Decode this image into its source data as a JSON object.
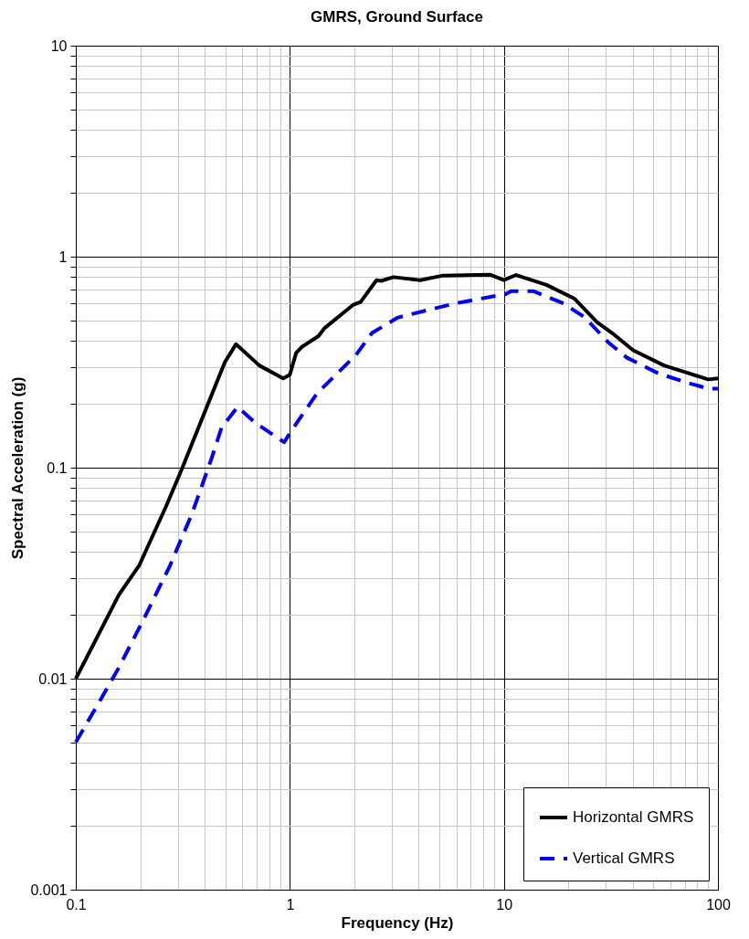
{
  "chart_data": {
    "type": "line",
    "title": "GMRS, Ground Surface",
    "xlabel": "Frequency (Hz)",
    "ylabel": "Spectral Acceleration (g)",
    "log": "xy",
    "grid": true,
    "legend": "bottom right",
    "marker": "none",
    "xlim": [
      0.1,
      100
    ],
    "ylim": [
      0.001,
      10
    ],
    "xticks": [
      0.1,
      {
        "value": 0.2,
        "label": null
      },
      {
        "value": 0.3,
        "label": null
      },
      {
        "value": 0.4,
        "label": null
      },
      {
        "value": 0.5,
        "label": null
      },
      {
        "value": 0.6,
        "label": null
      },
      {
        "value": 0.7,
        "label": null
      },
      {
        "value": 0.8,
        "label": null
      },
      {
        "value": 0.9,
        "label": null
      },
      1,
      {
        "value": 2,
        "label": null
      },
      {
        "value": 3,
        "label": null
      },
      {
        "value": 4,
        "label": null
      },
      {
        "value": 5,
        "label": null
      },
      {
        "value": 6,
        "label": null
      },
      {
        "value": 7,
        "label": null
      },
      {
        "value": 8,
        "label": null
      },
      {
        "value": 9,
        "label": null
      },
      10,
      {
        "value": 20,
        "label": null
      },
      {
        "value": 30,
        "label": null
      },
      {
        "value": 40,
        "label": null
      },
      {
        "value": 50,
        "label": null
      },
      {
        "value": 60,
        "label": null
      },
      {
        "value": 70,
        "label": null
      },
      {
        "value": 80,
        "label": null
      },
      {
        "value": 90,
        "label": null
      },
      100
    ],
    "yticks": [
      0.001,
      {
        "value": 0.002,
        "label": null
      },
      {
        "value": 0.003,
        "label": null
      },
      {
        "value": 0.004,
        "label": null
      },
      {
        "value": 0.005,
        "label": null
      },
      {
        "value": 0.006,
        "label": null
      },
      {
        "value": 0.007,
        "label": null
      },
      {
        "value": 0.008,
        "label": null
      },
      {
        "value": 0.009,
        "label": null
      },
      0.01,
      {
        "value": 0.02,
        "label": null
      },
      {
        "value": 0.03,
        "label": null
      },
      {
        "value": 0.04,
        "label": null
      },
      {
        "value": 0.05,
        "label": null
      },
      {
        "value": 0.06,
        "label": null
      },
      {
        "value": 0.07,
        "label": null
      },
      {
        "value": 0.08,
        "label": null
      },
      {
        "value": 0.09,
        "label": null
      },
      0.1,
      {
        "value": 0.2,
        "label": null
      },
      {
        "value": 0.3,
        "label": null
      },
      {
        "value": 0.4,
        "label": null
      },
      {
        "value": 0.5,
        "label": null
      },
      {
        "value": 0.6,
        "label": null
      },
      {
        "value": 0.7,
        "label": null
      },
      {
        "value": 0.8,
        "label": null
      },
      {
        "value": 0.9,
        "label": null
      },
      1,
      {
        "value": 2,
        "label": null
      },
      {
        "value": 3,
        "label": null
      },
      {
        "value": 4,
        "label": null
      },
      {
        "value": 5,
        "label": null
      },
      {
        "value": 6,
        "label": null
      },
      {
        "value": 7,
        "label": null
      },
      {
        "value": 8,
        "label": null
      },
      {
        "value": 9,
        "label": null
      },
      10
    ],
    "series": [
      {
        "name": "Horizontal GMRS",
        "color": "#000000",
        "line_style": "solid",
        "x": [
          0.1,
          0.159,
          0.198,
          0.263,
          0.311,
          0.406,
          0.497,
          0.56,
          0.72,
          0.93,
          1.0,
          1.07,
          1.14,
          1.36,
          1.45,
          1.97,
          2.14,
          2.54,
          2.67,
          3.05,
          4.06,
          5.2,
          8.6,
          10,
          11.4,
          15.8,
          21.4,
          27.2,
          32,
          40.2,
          56,
          73,
          90,
          100
        ],
        "values": [
          0.01,
          0.025,
          0.0345,
          0.065,
          0.097,
          0.19,
          0.316,
          0.385,
          0.305,
          0.265,
          0.276,
          0.35,
          0.374,
          0.42,
          0.458,
          0.59,
          0.61,
          0.774,
          0.768,
          0.8,
          0.774,
          0.814,
          0.822,
          0.774,
          0.819,
          0.735,
          0.632,
          0.49,
          0.435,
          0.36,
          0.305,
          0.28,
          0.262,
          0.265
        ]
      },
      {
        "name": "Vertical GMRS",
        "color": "#0000ff",
        "line_style": "dashed",
        "x": [
          0.1,
          0.13,
          0.159,
          0.211,
          0.276,
          0.35,
          0.43,
          0.48,
          0.57,
          0.69,
          0.94,
          1.09,
          1.34,
          2.04,
          2.42,
          3.2,
          5.9,
          10.2,
          10.8,
          13.7,
          19,
          23.9,
          30.7,
          37.6,
          52.6,
          69,
          90,
          100
        ],
        "values": [
          0.005,
          0.0079,
          0.0113,
          0.0198,
          0.0345,
          0.061,
          0.11,
          0.155,
          0.194,
          0.163,
          0.132,
          0.166,
          0.225,
          0.343,
          0.435,
          0.515,
          0.6,
          0.665,
          0.687,
          0.687,
          0.6,
          0.515,
          0.393,
          0.332,
          0.28,
          0.256,
          0.237,
          0.237
        ]
      }
    ]
  }
}
